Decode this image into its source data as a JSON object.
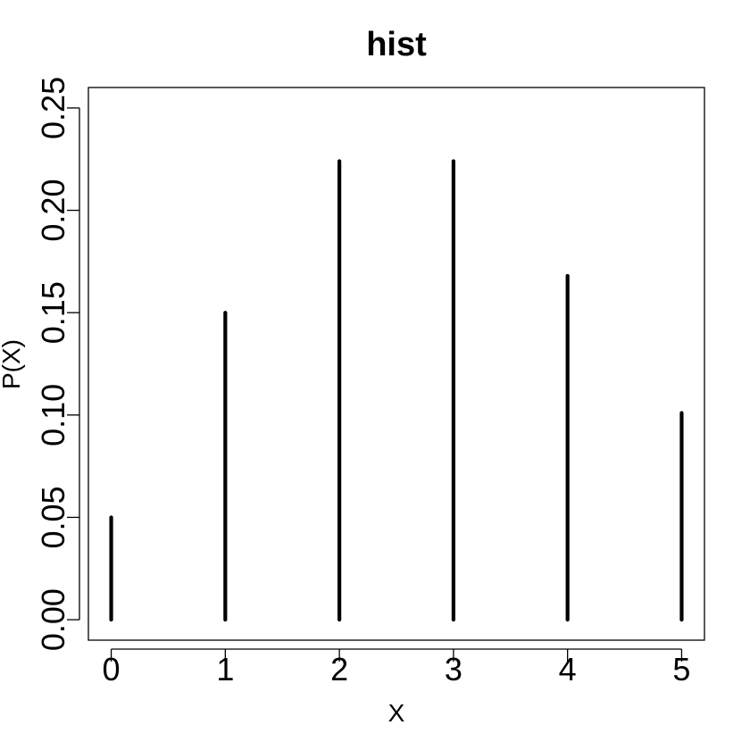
{
  "chart_data": {
    "type": "bar",
    "title": "hist",
    "xlabel": "X",
    "ylabel": "P(X)",
    "x": [
      0,
      1,
      2,
      3,
      4,
      5
    ],
    "values": [
      0.05,
      0.15,
      0.224,
      0.224,
      0.168,
      0.101
    ],
    "xlim": [
      -0.2,
      5.2
    ],
    "ylim": [
      -0.01,
      0.26
    ],
    "x_ticks": [
      "0",
      "1",
      "2",
      "3",
      "4",
      "5"
    ],
    "y_ticks": [
      "0.00",
      "0.05",
      "0.10",
      "0.15",
      "0.20",
      "0.25"
    ],
    "grid": false,
    "legend": "none",
    "colors": {
      "spike": "#000000",
      "axis": "#000000",
      "background": "#ffffff"
    }
  }
}
